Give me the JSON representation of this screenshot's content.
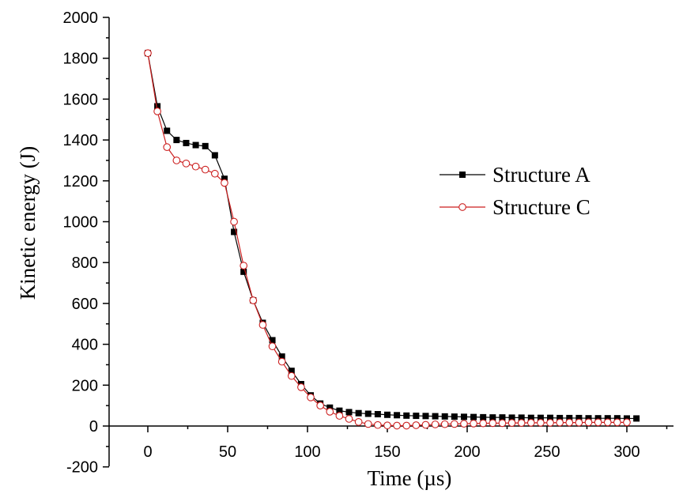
{
  "chart_data": {
    "type": "line",
    "xlabel": "Time (µs)",
    "ylabel": "Kinetic energy (J)",
    "xlim": [
      -23,
      338
    ],
    "ylim": [
      -200,
      2000
    ],
    "xticks": [
      0,
      50,
      100,
      150,
      200,
      250,
      300
    ],
    "yticks": [
      -200,
      0,
      200,
      400,
      600,
      800,
      1000,
      1200,
      1400,
      1600,
      1800,
      2000
    ],
    "grid": false,
    "legend_position": "right",
    "series": [
      {
        "name": "Structure A",
        "color": "#000000",
        "marker": "filled-square",
        "points": [
          [
            0,
            1825
          ],
          [
            6,
            1565
          ],
          [
            12,
            1445
          ],
          [
            18,
            1400
          ],
          [
            24,
            1385
          ],
          [
            30,
            1375
          ],
          [
            36,
            1370
          ],
          [
            42,
            1325
          ],
          [
            48,
            1210
          ],
          [
            54,
            950
          ],
          [
            60,
            755
          ],
          [
            66,
            615
          ],
          [
            72,
            505
          ],
          [
            78,
            420
          ],
          [
            84,
            340
          ],
          [
            90,
            270
          ],
          [
            96,
            205
          ],
          [
            102,
            150
          ],
          [
            108,
            110
          ],
          [
            114,
            90
          ],
          [
            120,
            75
          ],
          [
            126,
            68
          ],
          [
            132,
            63
          ],
          [
            138,
            60
          ],
          [
            144,
            58
          ],
          [
            150,
            55
          ],
          [
            156,
            53
          ],
          [
            162,
            51
          ],
          [
            168,
            50
          ],
          [
            174,
            49
          ],
          [
            180,
            48
          ],
          [
            186,
            47
          ],
          [
            192,
            46
          ],
          [
            198,
            45
          ],
          [
            204,
            44
          ],
          [
            210,
            43
          ],
          [
            216,
            42
          ],
          [
            222,
            42
          ],
          [
            228,
            41
          ],
          [
            234,
            41
          ],
          [
            240,
            40
          ],
          [
            246,
            40
          ],
          [
            252,
            40
          ],
          [
            258,
            39
          ],
          [
            264,
            39
          ],
          [
            270,
            39
          ],
          [
            276,
            38
          ],
          [
            282,
            38
          ],
          [
            288,
            38
          ],
          [
            294,
            38
          ],
          [
            300,
            37
          ],
          [
            306,
            37
          ]
        ]
      },
      {
        "name": "Structure C",
        "color": "#cc1f1f",
        "marker": "open-circle",
        "points": [
          [
            0,
            1825
          ],
          [
            6,
            1540
          ],
          [
            12,
            1365
          ],
          [
            18,
            1300
          ],
          [
            24,
            1285
          ],
          [
            30,
            1270
          ],
          [
            36,
            1255
          ],
          [
            42,
            1235
          ],
          [
            48,
            1190
          ],
          [
            54,
            1000
          ],
          [
            60,
            785
          ],
          [
            66,
            615
          ],
          [
            72,
            495
          ],
          [
            78,
            390
          ],
          [
            84,
            315
          ],
          [
            90,
            245
          ],
          [
            96,
            190
          ],
          [
            102,
            140
          ],
          [
            108,
            100
          ],
          [
            114,
            70
          ],
          [
            120,
            50
          ],
          [
            126,
            35
          ],
          [
            132,
            20
          ],
          [
            138,
            10
          ],
          [
            144,
            5
          ],
          [
            150,
            3
          ],
          [
            156,
            2
          ],
          [
            162,
            2
          ],
          [
            168,
            4
          ],
          [
            174,
            6
          ],
          [
            180,
            8
          ],
          [
            186,
            9
          ],
          [
            192,
            10
          ],
          [
            198,
            11
          ],
          [
            204,
            12
          ],
          [
            210,
            13
          ],
          [
            216,
            14
          ],
          [
            222,
            14
          ],
          [
            228,
            15
          ],
          [
            234,
            15
          ],
          [
            240,
            16
          ],
          [
            246,
            16
          ],
          [
            252,
            16
          ],
          [
            258,
            17
          ],
          [
            264,
            17
          ],
          [
            270,
            17
          ],
          [
            276,
            18
          ],
          [
            282,
            18
          ],
          [
            288,
            18
          ],
          [
            294,
            18
          ],
          [
            300,
            18
          ]
        ]
      }
    ]
  }
}
